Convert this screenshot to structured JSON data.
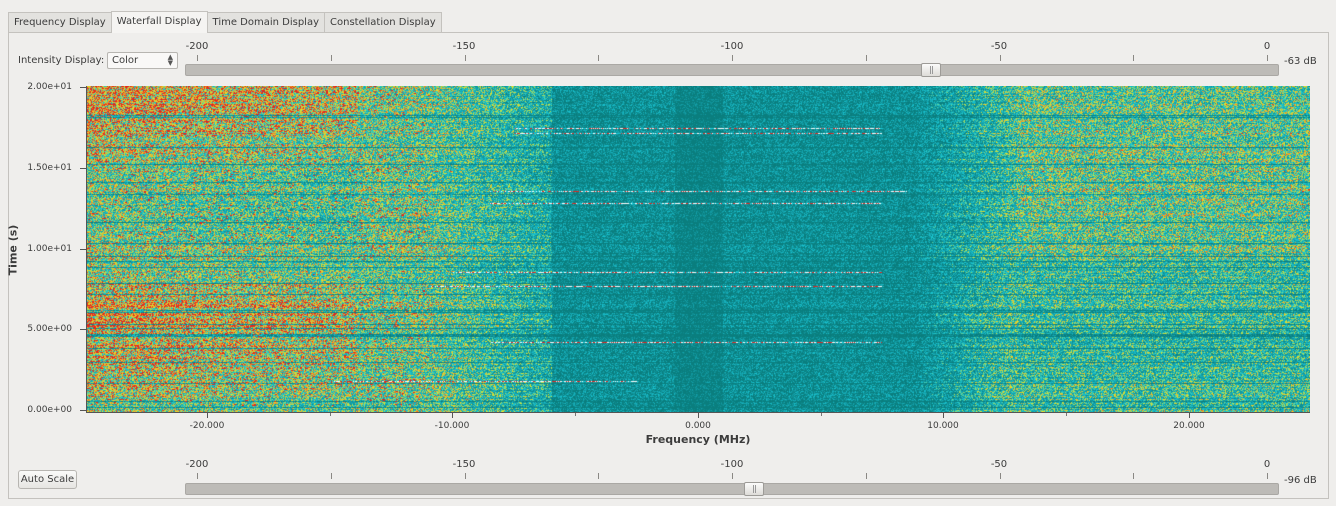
{
  "tabs": [
    {
      "label": "Frequency Display",
      "active": false
    },
    {
      "label": "Waterfall Display",
      "active": true
    },
    {
      "label": "Time Domain Display",
      "active": false
    },
    {
      "label": "Constellation Display",
      "active": false
    }
  ],
  "intensity": {
    "label": "Intensity Display:",
    "selected": "Color"
  },
  "top_slider": {
    "tick_labels": [
      "-200",
      "-150",
      "-100",
      "-50",
      "0"
    ],
    "value_label": "-63 dB",
    "value": -63
  },
  "bottom_slider": {
    "tick_labels": [
      "-200",
      "-150",
      "-100",
      "-50",
      "0"
    ],
    "value_label": "-96 dB",
    "value": -96
  },
  "auto_scale_label": "Auto Scale",
  "waterfall": {
    "y_axis_label": "Time (s)",
    "y_ticks": [
      "2.00e+01",
      "1.50e+01",
      "1.00e+01",
      "5.00e+00",
      "0.00e+00"
    ],
    "x_axis_label": "Frequency (MHz)",
    "x_ticks": [
      "-20.000",
      "-10.000",
      "0.000",
      "10.000",
      "20.000"
    ],
    "colors": {
      "low": "#0a7e7e",
      "mid": "#19c7d4",
      "high": "#e3e62a",
      "peak": "#e2251f"
    }
  }
}
